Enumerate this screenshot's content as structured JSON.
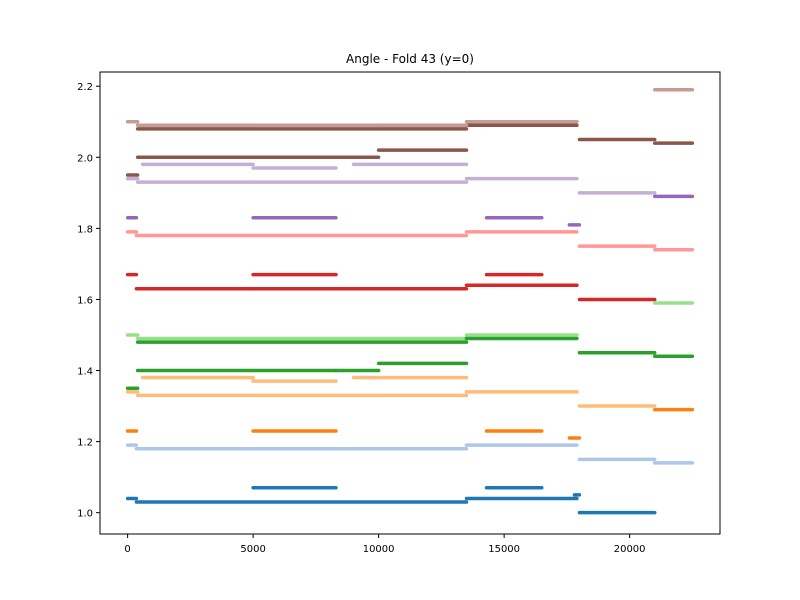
{
  "chart_data": {
    "type": "scatter",
    "title": "Angle - Fold 43 (y=0)",
    "xlabel": "",
    "ylabel": "",
    "xlim": [
      -1100,
      23600
    ],
    "ylim": [
      0.94,
      2.24
    ],
    "xticks": [
      0,
      5000,
      10000,
      15000,
      20000
    ],
    "xtick_labels": [
      "0",
      "5000",
      "10000",
      "15000",
      "20000"
    ],
    "yticks": [
      1.0,
      1.2,
      1.4,
      1.6,
      1.8,
      2.0,
      2.2
    ],
    "ytick_labels": [
      "1.0",
      "1.2",
      "1.4",
      "1.6",
      "1.8",
      "2.0",
      "2.2"
    ],
    "grid": false,
    "legend": "none",
    "series": [
      {
        "color": "#1f77b4",
        "segments": [
          {
            "x": [
              0,
              350
            ],
            "y": 1.04
          },
          {
            "x": [
              350,
              13500
            ],
            "y": 1.03
          },
          {
            "x": [
              5000,
              8300
            ],
            "y": 1.07
          },
          {
            "x": [
              13500,
              17900
            ],
            "y": 1.04
          },
          {
            "x": [
              14300,
              16500
            ],
            "y": 1.07
          },
          {
            "x": [
              17800,
              18000
            ],
            "y": 1.05
          },
          {
            "x": [
              18000,
              21000
            ],
            "y": 1.0
          }
        ]
      },
      {
        "color": "#aec7e8",
        "segments": [
          {
            "x": [
              0,
              350
            ],
            "y": 1.19
          },
          {
            "x": [
              350,
              13500
            ],
            "y": 1.18
          },
          {
            "x": [
              13500,
              17900
            ],
            "y": 1.19
          },
          {
            "x": [
              18000,
              21000
            ],
            "y": 1.15
          },
          {
            "x": [
              21000,
              22500
            ],
            "y": 1.14
          }
        ]
      },
      {
        "color": "#ff7f0e",
        "segments": [
          {
            "x": [
              0,
              350
            ],
            "y": 1.23
          },
          {
            "x": [
              5000,
              8300
            ],
            "y": 1.23
          },
          {
            "x": [
              14300,
              16500
            ],
            "y": 1.23
          },
          {
            "x": [
              17600,
              18000
            ],
            "y": 1.21
          },
          {
            "x": [
              21000,
              22500
            ],
            "y": 1.29
          }
        ]
      },
      {
        "color": "#ffbb78",
        "segments": [
          {
            "x": [
              0,
              400
            ],
            "y": 1.34
          },
          {
            "x": [
              400,
              13500
            ],
            "y": 1.33
          },
          {
            "x": [
              600,
              5000
            ],
            "y": 1.38
          },
          {
            "x": [
              5000,
              8300
            ],
            "y": 1.37
          },
          {
            "x": [
              9000,
              13500
            ],
            "y": 1.38
          },
          {
            "x": [
              13500,
              17900
            ],
            "y": 1.34
          },
          {
            "x": [
              18000,
              21000
            ],
            "y": 1.3
          }
        ]
      },
      {
        "color": "#2ca02c",
        "segments": [
          {
            "x": [
              0,
              400
            ],
            "y": 1.35
          },
          {
            "x": [
              400,
              8300
            ],
            "y": 1.4
          },
          {
            "x": [
              8300,
              10000
            ],
            "y": 1.4
          },
          {
            "x": [
              10000,
              13500
            ],
            "y": 1.42
          },
          {
            "x": [
              18000,
              21000
            ],
            "y": 1.45
          },
          {
            "x": [
              21000,
              22500
            ],
            "y": 1.44
          }
        ]
      },
      {
        "color": "#98df8a",
        "segments": [
          {
            "x": [
              0,
              400
            ],
            "y": 1.5
          },
          {
            "x": [
              400,
              13500
            ],
            "y": 1.49
          },
          {
            "x": [
              13500,
              17900
            ],
            "y": 1.5
          },
          {
            "x": [
              21000,
              22500
            ],
            "y": 1.59
          }
        ]
      },
      {
        "color": "#2ca02c",
        "segments": [
          {
            "x": [
              400,
              13500
            ],
            "y": 1.48
          },
          {
            "x": [
              13500,
              17900
            ],
            "y": 1.49
          }
        ]
      },
      {
        "color": "#d62728",
        "segments": [
          {
            "x": [
              0,
              350
            ],
            "y": 1.67
          },
          {
            "x": [
              350,
              5000
            ],
            "y": 1.63
          },
          {
            "x": [
              5000,
              8300
            ],
            "y": 1.67
          },
          {
            "x": [
              5000,
              13500
            ],
            "y": 1.63
          },
          {
            "x": [
              13500,
              17900
            ],
            "y": 1.64
          },
          {
            "x": [
              14300,
              16500
            ],
            "y": 1.67
          },
          {
            "x": [
              18000,
              21000
            ],
            "y": 1.6
          }
        ]
      },
      {
        "color": "#ff9896",
        "segments": [
          {
            "x": [
              0,
              350
            ],
            "y": 1.79
          },
          {
            "x": [
              350,
              13500
            ],
            "y": 1.78
          },
          {
            "x": [
              13500,
              17900
            ],
            "y": 1.79
          },
          {
            "x": [
              18000,
              21000
            ],
            "y": 1.75
          },
          {
            "x": [
              21000,
              22500
            ],
            "y": 1.74
          }
        ]
      },
      {
        "color": "#9467bd",
        "segments": [
          {
            "x": [
              0,
              350
            ],
            "y": 1.83
          },
          {
            "x": [
              5000,
              8300
            ],
            "y": 1.83
          },
          {
            "x": [
              14300,
              16500
            ],
            "y": 1.83
          },
          {
            "x": [
              17600,
              18000
            ],
            "y": 1.81
          },
          {
            "x": [
              21000,
              22500
            ],
            "y": 1.89
          }
        ]
      },
      {
        "color": "#c5b0d5",
        "segments": [
          {
            "x": [
              0,
              400
            ],
            "y": 1.94
          },
          {
            "x": [
              400,
              5000
            ],
            "y": 1.93
          },
          {
            "x": [
              600,
              5000
            ],
            "y": 1.98
          },
          {
            "x": [
              5000,
              8300
            ],
            "y": 1.97
          },
          {
            "x": [
              5000,
              13500
            ],
            "y": 1.93
          },
          {
            "x": [
              9000,
              13500
            ],
            "y": 1.98
          },
          {
            "x": [
              13500,
              17900
            ],
            "y": 1.94
          },
          {
            "x": [
              18000,
              21000
            ],
            "y": 1.9
          }
        ]
      },
      {
        "color": "#8c564b",
        "segments": [
          {
            "x": [
              0,
              400
            ],
            "y": 1.95
          },
          {
            "x": [
              400,
              8300
            ],
            "y": 2.0
          },
          {
            "x": [
              8300,
              10000
            ],
            "y": 2.0
          },
          {
            "x": [
              10000,
              13500
            ],
            "y": 2.02
          },
          {
            "x": [
              18000,
              21000
            ],
            "y": 2.05
          },
          {
            "x": [
              21000,
              22500
            ],
            "y": 2.04
          }
        ]
      },
      {
        "color": "#8c564b",
        "segments": [
          {
            "x": [
              400,
              13500
            ],
            "y": 2.08
          },
          {
            "x": [
              13500,
              17900
            ],
            "y": 2.09
          }
        ]
      },
      {
        "color": "#c49c94",
        "segments": [
          {
            "x": [
              0,
              400
            ],
            "y": 2.1
          },
          {
            "x": [
              400,
              13500
            ],
            "y": 2.09
          },
          {
            "x": [
              13500,
              17900
            ],
            "y": 2.1
          },
          {
            "x": [
              21000,
              22500
            ],
            "y": 2.19
          }
        ]
      }
    ]
  }
}
